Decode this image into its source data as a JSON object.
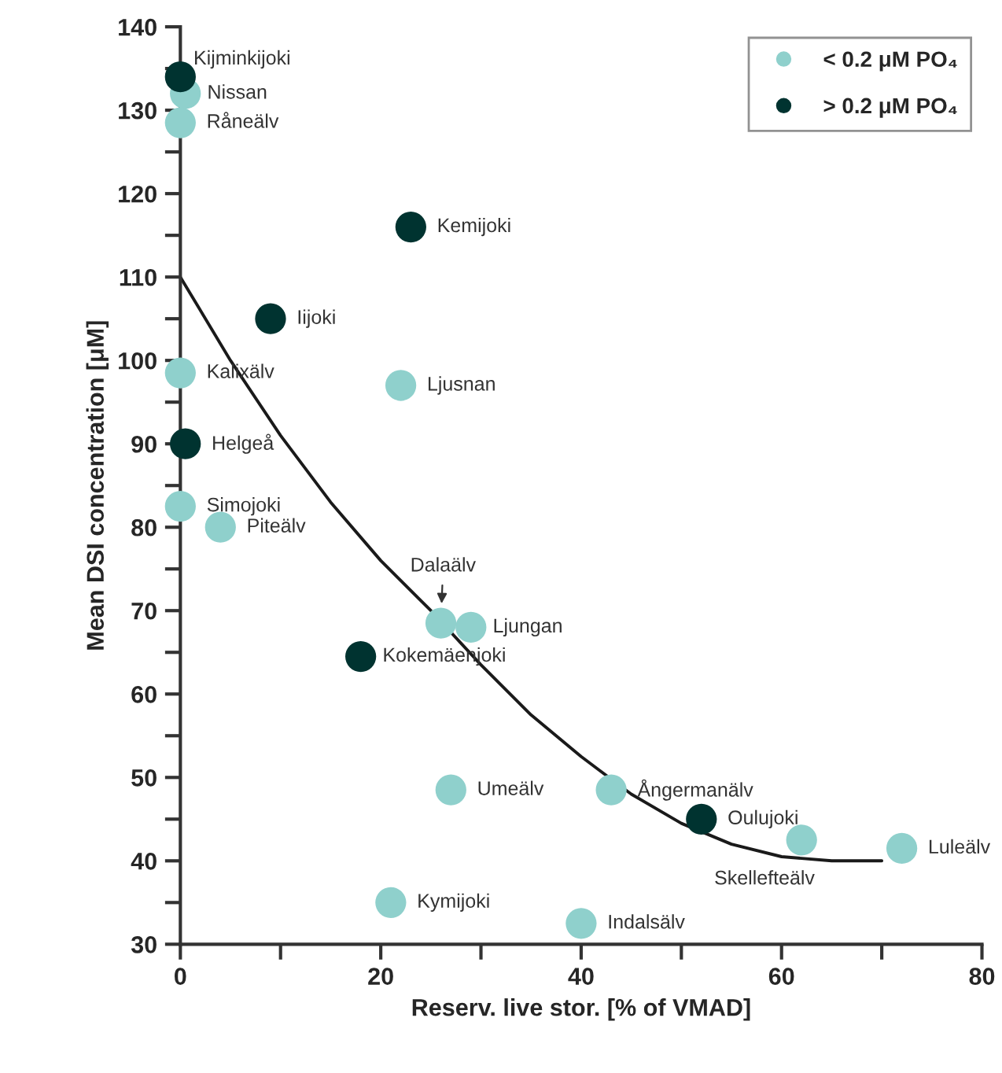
{
  "chart_data": {
    "type": "scatter",
    "xlabel": "Reserv. live stor. [% of VMAD]",
    "ylabel": "Mean DSI concentration [μM]",
    "xlim": [
      0,
      80
    ],
    "ylim": [
      30,
      140
    ],
    "xticks": [
      0,
      {
        "value": 10,
        "label": null
      },
      20,
      {
        "value": 30,
        "label": null
      },
      40,
      {
        "value": 50,
        "label": null
      },
      60,
      {
        "value": 70,
        "label": null
      },
      80
    ],
    "yticks": [
      30,
      {
        "value": 35,
        "label": null
      },
      40,
      {
        "value": 45,
        "label": null
      },
      50,
      {
        "value": 55,
        "label": null
      },
      60,
      {
        "value": 65,
        "label": null
      },
      70,
      {
        "value": 75,
        "label": null
      },
      80,
      {
        "value": 85,
        "label": null
      },
      90,
      {
        "value": 95,
        "label": null
      },
      100,
      {
        "value": 105,
        "label": null
      },
      110,
      {
        "value": 115,
        "label": null
      },
      120,
      {
        "value": 125,
        "label": null
      },
      130,
      {
        "value": 135,
        "label": null
      },
      140
    ],
    "grid": false,
    "legend": "top right",
    "marker": "circle",
    "series": [
      {
        "name": "< 0.2 μM PO₄",
        "color": "#8fd0cc",
        "x": [
          0.5,
          0,
          0,
          22,
          0,
          4,
          26,
          29,
          27,
          43,
          62,
          72,
          21,
          40
        ],
        "values": [
          132,
          128.5,
          98.5,
          97,
          82.5,
          80,
          68.5,
          68,
          48.5,
          48.5,
          42.5,
          41.5,
          35,
          32.5
        ]
      },
      {
        "name": "> 0.2 μM PO₄",
        "color": "#003330",
        "x": [
          0,
          23,
          9,
          0.5,
          18,
          52
        ],
        "values": [
          134,
          116,
          105,
          90,
          64.5,
          45
        ]
      },
      {
        "type": "line",
        "marker": "none",
        "color": "#1a1a1a",
        "x": [
          0,
          5,
          10,
          15,
          20,
          25,
          30,
          35,
          40,
          45,
          50,
          55,
          60,
          65,
          70
        ],
        "values": [
          110,
          100,
          91,
          83,
          76,
          70,
          63.5,
          57.5,
          52.5,
          48,
          44.5,
          42,
          40.5,
          40,
          40
        ]
      }
    ],
    "annotations": [
      {
        "text": "Kijminkijoki",
        "x": 0,
        "y": 134
      },
      {
        "text": "Nissan",
        "x": 0.5,
        "y": 132
      },
      {
        "text": "Råneälv",
        "x": 0,
        "y": 128.5
      },
      {
        "text": "Kemijoki",
        "x": 23,
        "y": 116
      },
      {
        "text": "Iijoki",
        "x": 9,
        "y": 105
      },
      {
        "text": "Kalixälv",
        "x": 0,
        "y": 98.5
      },
      {
        "text": "Ljusnan",
        "x": 22,
        "y": 97
      },
      {
        "text": "Helgeå",
        "x": 0.5,
        "y": 90
      },
      {
        "text": "Simojoki",
        "x": 0,
        "y": 82.5
      },
      {
        "text": "Piteälv",
        "x": 4,
        "y": 80
      },
      {
        "text": "Dalaälv",
        "x": 26,
        "y": 68.5
      },
      {
        "text": "Ljungan",
        "x": 29,
        "y": 68
      },
      {
        "text": "Kokemäenjoki",
        "x": 18,
        "y": 64.5
      },
      {
        "text": "Umeälv",
        "x": 27,
        "y": 48.5
      },
      {
        "text": "Ångermanälv",
        "x": 43,
        "y": 48.5
      },
      {
        "text": "Oulujoki",
        "x": 52,
        "y": 45
      },
      {
        "text": "Skellefteälv",
        "x": 62,
        "y": 42.5
      },
      {
        "text": "Luleälv",
        "x": 72,
        "y": 41.5
      },
      {
        "text": "Kymijoki",
        "x": 21,
        "y": 35
      },
      {
        "text": "Indalsälv",
        "x": 40,
        "y": 32.5
      }
    ]
  }
}
